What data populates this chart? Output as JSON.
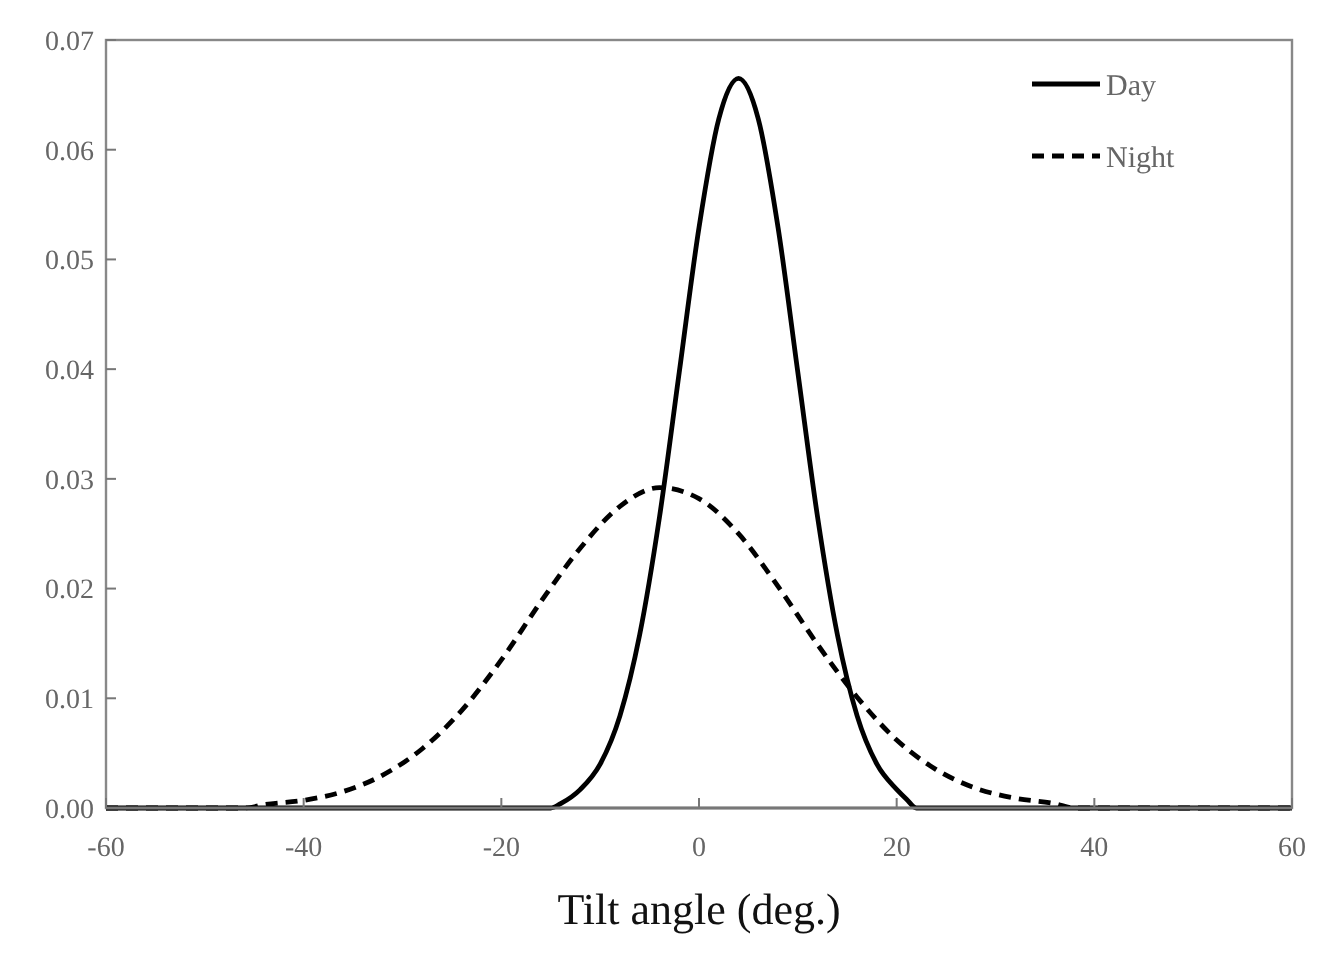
{
  "chart_data": {
    "type": "line",
    "xlabel": "Tilt angle (deg.)",
    "xlim": [
      -60,
      60
    ],
    "xticks": [
      -60,
      -40,
      -20,
      0,
      20,
      40,
      60
    ],
    "ylim": [
      0,
      0.07
    ],
    "yticks": [
      {
        "value": 0,
        "label": "0.00"
      },
      {
        "value": 0.01,
        "label": "0.01"
      },
      {
        "value": 0.02,
        "label": "0.02"
      },
      {
        "value": 0.03,
        "label": "0.03"
      },
      {
        "value": 0.04,
        "label": "0.04"
      },
      {
        "value": 0.05,
        "label": "0.05"
      },
      {
        "value": 0.06,
        "label": "0.06"
      },
      {
        "value": 0.07,
        "label": "0.07"
      }
    ],
    "grid": false,
    "legend": "top right",
    "series": [
      {
        "name": "Day",
        "color": "#000000",
        "line_style": "solid",
        "x": [
          -60,
          -15,
          -14,
          -12,
          -10,
          -8,
          -6,
          -4,
          -2,
          0,
          2,
          4,
          6,
          8,
          10,
          12,
          14,
          16,
          18,
          20,
          21,
          22,
          60
        ],
        "values": [
          0,
          0,
          0.0004,
          0.0017,
          0.004,
          0.0084,
          0.0158,
          0.0265,
          0.0397,
          0.0529,
          0.0628,
          0.0665,
          0.0628,
          0.0529,
          0.0397,
          0.0265,
          0.0158,
          0.0084,
          0.004,
          0.0017,
          0.0008,
          0,
          0
        ]
      },
      {
        "name": "Night",
        "color": "#000000",
        "line_style": "dashed",
        "x": [
          -60,
          -46,
          -44,
          -40,
          -36,
          -32,
          -28,
          -24,
          -20,
          -16,
          -12,
          -8,
          -4,
          0,
          4,
          8,
          12,
          16,
          20,
          24,
          28,
          32,
          36,
          38,
          60
        ],
        "values": [
          0,
          0,
          0.0003,
          0.0007,
          0.0015,
          0.003,
          0.0054,
          0.0089,
          0.0135,
          0.0188,
          0.0237,
          0.0275,
          0.0292,
          0.0282,
          0.025,
          0.0202,
          0.0149,
          0.0101,
          0.0062,
          0.0035,
          0.0018,
          0.0009,
          0.0004,
          0,
          0
        ]
      }
    ]
  }
}
